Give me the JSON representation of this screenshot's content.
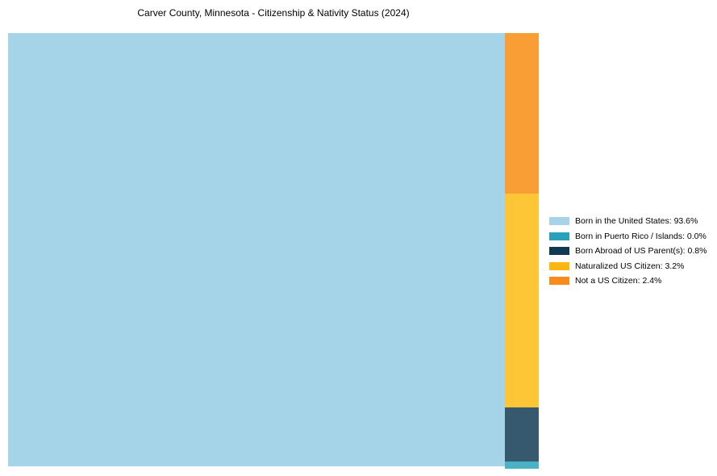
{
  "title": "Carver County, Minnesota - Citizenship & Nativity Status (2024)",
  "chart_data": {
    "type": "treemap",
    "title": "Carver County, Minnesota - Citizenship & Nativity Status (2024)",
    "series": [
      {
        "name": "Born in the United States",
        "value_pct": 93.6
      },
      {
        "name": "Born in Puerto Rico / Islands",
        "value_pct": 0.0
      },
      {
        "name": "Born Abroad of US Parent(s)",
        "value_pct": 0.8
      },
      {
        "name": "Naturalized US Citizen",
        "value_pct": 3.2
      },
      {
        "name": "Not a US Citizen",
        "value_pct": 2.4
      }
    ],
    "legend_position": "right",
    "layout_note": "Single large rect at left full height; remaining categories stacked top-to-bottom in a narrow right column: Not a US Citizen, Naturalized US Citizen, Born Abroad of US Parent(s), Born in Puerto Rico / Islands"
  },
  "colors": {
    "chart": {
      "born_us": "#a5d3e8",
      "puerto_rico": "#4bb2c3",
      "born_abroad": "#37596d",
      "naturalized": "#fdc637",
      "not_citizen": "#f99d35"
    },
    "legend": {
      "born_us": "#a6d3ea",
      "puerto_rico": "#2aa0bb",
      "born_abroad": "#113a52",
      "naturalized": "#feb612",
      "not_citizen": "#f78c1b"
    }
  },
  "legend": {
    "items": [
      {
        "label": "Born in the United States",
        "value_pct": "93.6%",
        "text": "Born in the United States: 93.6%"
      },
      {
        "label": "Born in Puerto Rico / Islands",
        "value_pct": "0.0%",
        "text": "Born in Puerto Rico / Islands: 0.0%"
      },
      {
        "label": "Born Abroad of US Parent(s)",
        "value_pct": "0.8%",
        "text": "Born Abroad of US Parent(s): 0.8%"
      },
      {
        "label": "Naturalized US Citizen",
        "value_pct": "3.2%",
        "text": "Naturalized US Citizen: 3.2%"
      },
      {
        "label": "Not a US Citizen",
        "value_pct": "2.4%",
        "text": "Not a US Citizen: 2.4%"
      }
    ]
  }
}
